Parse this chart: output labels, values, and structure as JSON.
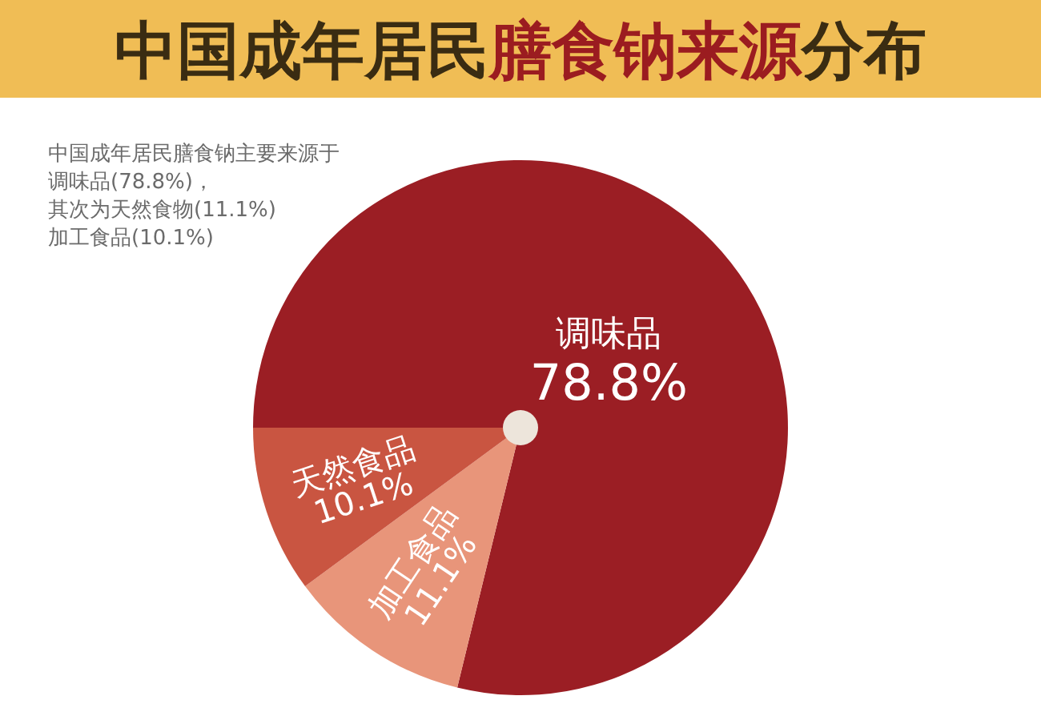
{
  "chart_data": {
    "type": "pie",
    "title": "中国成年居民膳食钠来源分布",
    "categories": [
      "调味品",
      "加工食品",
      "天然食品"
    ],
    "values": [
      78.8,
      11.1,
      10.1
    ],
    "value_labels": [
      "78.8%",
      "11.1%",
      "10.1%"
    ],
    "colors": [
      "#9b1e24",
      "#e8957a",
      "#c95541"
    ],
    "annotations": [
      "中国成年居民膳食钠主要来源于",
      "调味品(78.8%)，",
      "其次为天然食物(11.1%)",
      "加工食品(10.1%)"
    ]
  }
}
